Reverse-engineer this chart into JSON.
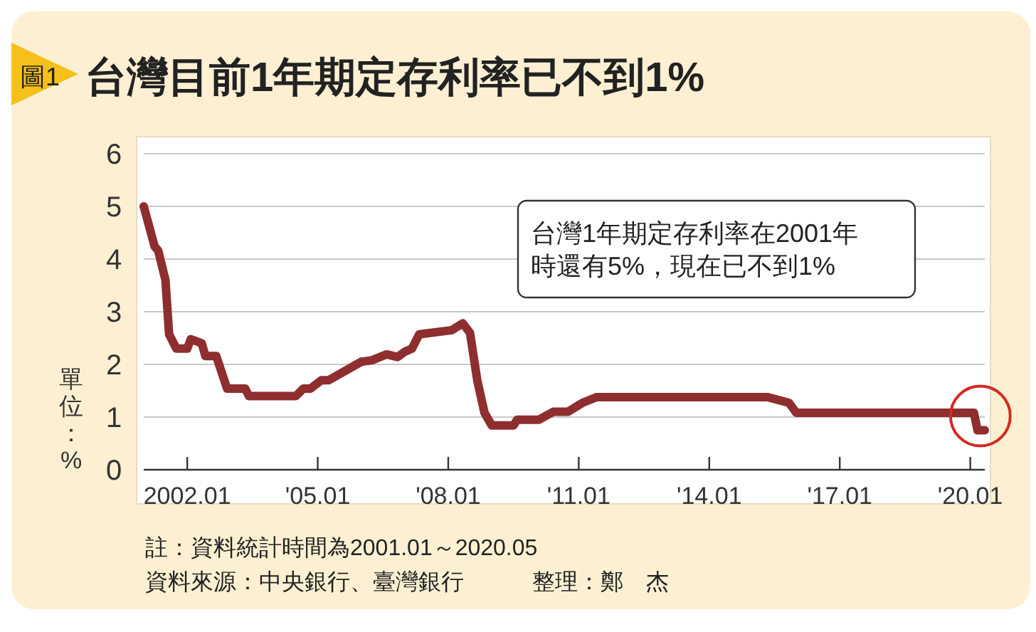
{
  "chart_data": {
    "type": "line",
    "title": "台灣目前1年期定存利率已不到1%",
    "ylabel": "單位：%",
    "annotations": [
      "圖1",
      "台灣1年期定存利率在2001年",
      "時還有5%，現在已不到1%",
      "註：資料統計時間為2001.01～2020.05",
      "資料來源：中央銀行、臺灣銀行　　　整理：鄭　杰"
    ],
    "x": [
      "2001-01",
      "2001-04",
      "2001-05",
      "2001-07",
      "2001-08",
      "2001-10",
      "2002-01",
      "2002-02",
      "2002-05",
      "2002-06",
      "2002-09",
      "2002-12",
      "2003-05",
      "2003-06",
      "2004-07",
      "2004-09",
      "2004-11",
      "2005-02",
      "2005-04",
      "2006-01",
      "2006-04",
      "2006-08",
      "2006-11",
      "2007-01",
      "2007-03",
      "2007-05",
      "2008-02",
      "2008-05",
      "2008-07",
      "2008-09",
      "2008-11",
      "2009-01",
      "2009-07",
      "2009-08",
      "2010-02",
      "2010-06",
      "2010-10",
      "2011-02",
      "2011-06",
      "2015-05",
      "2015-11",
      "2016-01",
      "2020-02",
      "2020-03",
      "2020-05"
    ],
    "series": [
      {
        "color": "#8f2e2e",
        "values": [
          5.0,
          4.24,
          4.16,
          3.6,
          2.57,
          2.3,
          2.3,
          2.48,
          2.4,
          2.16,
          2.16,
          1.54,
          1.54,
          1.4,
          1.4,
          1.54,
          1.54,
          1.7,
          1.7,
          2.05,
          2.08,
          2.19,
          2.14,
          2.24,
          2.3,
          2.57,
          2.65,
          2.78,
          2.6,
          1.7,
          1.08,
          0.84,
          0.84,
          0.95,
          0.95,
          1.1,
          1.1,
          1.27,
          1.38,
          1.38,
          1.27,
          1.08,
          1.08,
          0.75,
          0.75
        ]
      }
    ],
    "xlim": [
      "2001-01",
      "2020-05"
    ],
    "xticks": [
      {
        "value": "2002-01",
        "label": "2002.01"
      },
      {
        "value": "2005-01",
        "label": "'05.01"
      },
      {
        "value": "2008-01",
        "label": "'08.01"
      },
      {
        "value": "2011-01",
        "label": "'11.01"
      },
      {
        "value": "2014-01",
        "label": "'14.01"
      },
      {
        "value": "2017-01",
        "label": "'17.01"
      },
      {
        "value": "2020-01",
        "label": "'20.01"
      }
    ],
    "ylim": [
      0,
      6
    ],
    "yticks": [
      0,
      1,
      2,
      3,
      4,
      5,
      6
    ],
    "grid": "y",
    "marker": "none",
    "line_style": "solid"
  }
}
